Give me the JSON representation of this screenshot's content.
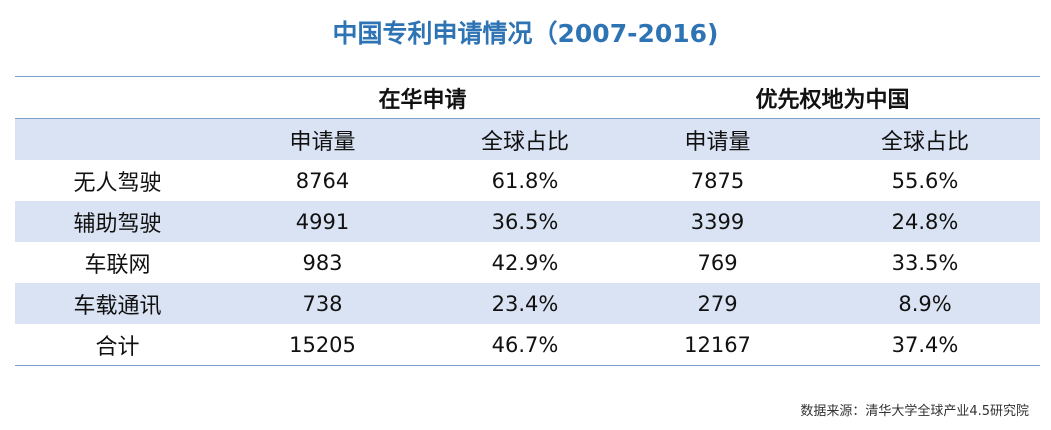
{
  "title": "中国专利申请情况（2007-2016)",
  "header": {
    "group1": "在华申请",
    "group2": "优先权地为中国",
    "sub": [
      "申请量",
      "全球占比",
      "申请量",
      "全球占比"
    ]
  },
  "rows": [
    {
      "label": "无人驾驶",
      "values": [
        "8764",
        "61.8%",
        "7875",
        "55.6%"
      ]
    },
    {
      "label": "辅助驾驶",
      "values": [
        "4991",
        "36.5%",
        "3399",
        "24.8%"
      ]
    },
    {
      "label": "车联网",
      "values": [
        "983",
        "42.9%",
        "769",
        "33.5%"
      ]
    },
    {
      "label": "车载通讯",
      "values": [
        "738",
        "23.4%",
        "279",
        "8.9%"
      ]
    },
    {
      "label": "合计",
      "values": [
        "15205",
        "46.7%",
        "12167",
        "37.4%"
      ]
    }
  ],
  "source": "数据来源：清华大学全球产业4.5研究院",
  "colors": {
    "title": "#2e74b5",
    "shade": "#dae3f3",
    "rule": "#7ea0cc"
  }
}
